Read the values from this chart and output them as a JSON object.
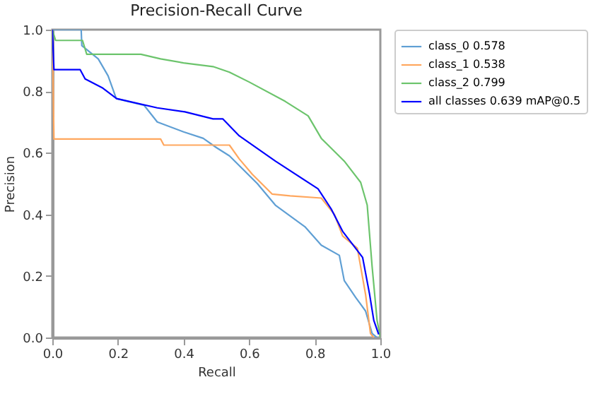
{
  "chart_data": {
    "type": "line",
    "title": "Precision-Recall Curve",
    "xlabel": "Recall",
    "ylabel": "Precision",
    "xlim": [
      0,
      1
    ],
    "ylim": [
      0,
      1
    ],
    "xticks": [
      {
        "value": 0,
        "label": "0.0"
      },
      {
        "value": 0.2,
        "label": "0.2"
      },
      {
        "value": 0.4,
        "label": "0.4"
      },
      {
        "value": 0.6,
        "label": "0.6"
      },
      {
        "value": 0.8,
        "label": "0.8"
      },
      {
        "value": 1,
        "label": "1.0"
      }
    ],
    "yticks": [
      {
        "value": 0,
        "label": "0.0"
      },
      {
        "value": 0.2,
        "label": "0.2"
      },
      {
        "value": 0.4,
        "label": "0.4"
      },
      {
        "value": 0.6,
        "label": "0.6"
      },
      {
        "value": 0.8,
        "label": "0.8"
      },
      {
        "value": 1,
        "label": "1.0"
      }
    ],
    "grid": false,
    "legend": "right",
    "series": [
      {
        "name": "class_0 0.578",
        "color": "#5f9fd4",
        "x": [
          0,
          0.088,
          0.09,
          0.14,
          0.17,
          0.195,
          0.28,
          0.32,
          0.4,
          0.46,
          0.5,
          0.54,
          0.625,
          0.68,
          0.77,
          0.82,
          0.875,
          0.89,
          0.925,
          0.955,
          0.975,
          0.99
        ],
        "values": [
          1,
          1,
          0.948,
          0.905,
          0.85,
          0.776,
          0.754,
          0.7,
          0.668,
          0.647,
          0.617,
          0.59,
          0.5,
          0.43,
          0.36,
          0.3,
          0.267,
          0.185,
          0.13,
          0.086,
          0.013,
          0
        ]
      },
      {
        "name": "class_1 0.538",
        "color": "#ffa75e",
        "x": [
          0,
          0.005,
          0.33,
          0.34,
          0.54,
          0.57,
          0.61,
          0.67,
          0.725,
          0.82,
          0.86,
          0.885,
          0.93,
          0.955,
          0.97,
          0.98
        ],
        "values": [
          1,
          0.645,
          0.645,
          0.625,
          0.625,
          0.58,
          0.53,
          0.466,
          0.46,
          0.453,
          0.4,
          0.33,
          0.29,
          0.14,
          0.013,
          0
        ]
      },
      {
        "name": "class_2 0.799",
        "color": "#6cc46c",
        "x": [
          0,
          0.01,
          0.092,
          0.105,
          0.27,
          0.33,
          0.4,
          0.49,
          0.54,
          0.6,
          0.71,
          0.78,
          0.82,
          0.89,
          0.94,
          0.96,
          0.975,
          0.99,
          1
        ],
        "values": [
          1,
          0.965,
          0.965,
          0.92,
          0.92,
          0.905,
          0.892,
          0.88,
          0.862,
          0.83,
          0.767,
          0.72,
          0.647,
          0.573,
          0.504,
          0.43,
          0.23,
          0.056,
          0
        ]
      },
      {
        "name": "all classes 0.639 mAP@0.5",
        "color": "#0000ff",
        "x": [
          0,
          0.005,
          0.085,
          0.1,
          0.154,
          0.196,
          0.32,
          0.404,
          0.49,
          0.52,
          0.57,
          0.68,
          0.81,
          0.85,
          0.885,
          0.946,
          0.967,
          0.98,
          0.995
        ],
        "values": [
          1,
          0.87,
          0.87,
          0.84,
          0.81,
          0.776,
          0.746,
          0.733,
          0.71,
          0.71,
          0.655,
          0.573,
          0.483,
          0.418,
          0.345,
          0.26,
          0.142,
          0.056,
          0.01
        ]
      }
    ]
  }
}
